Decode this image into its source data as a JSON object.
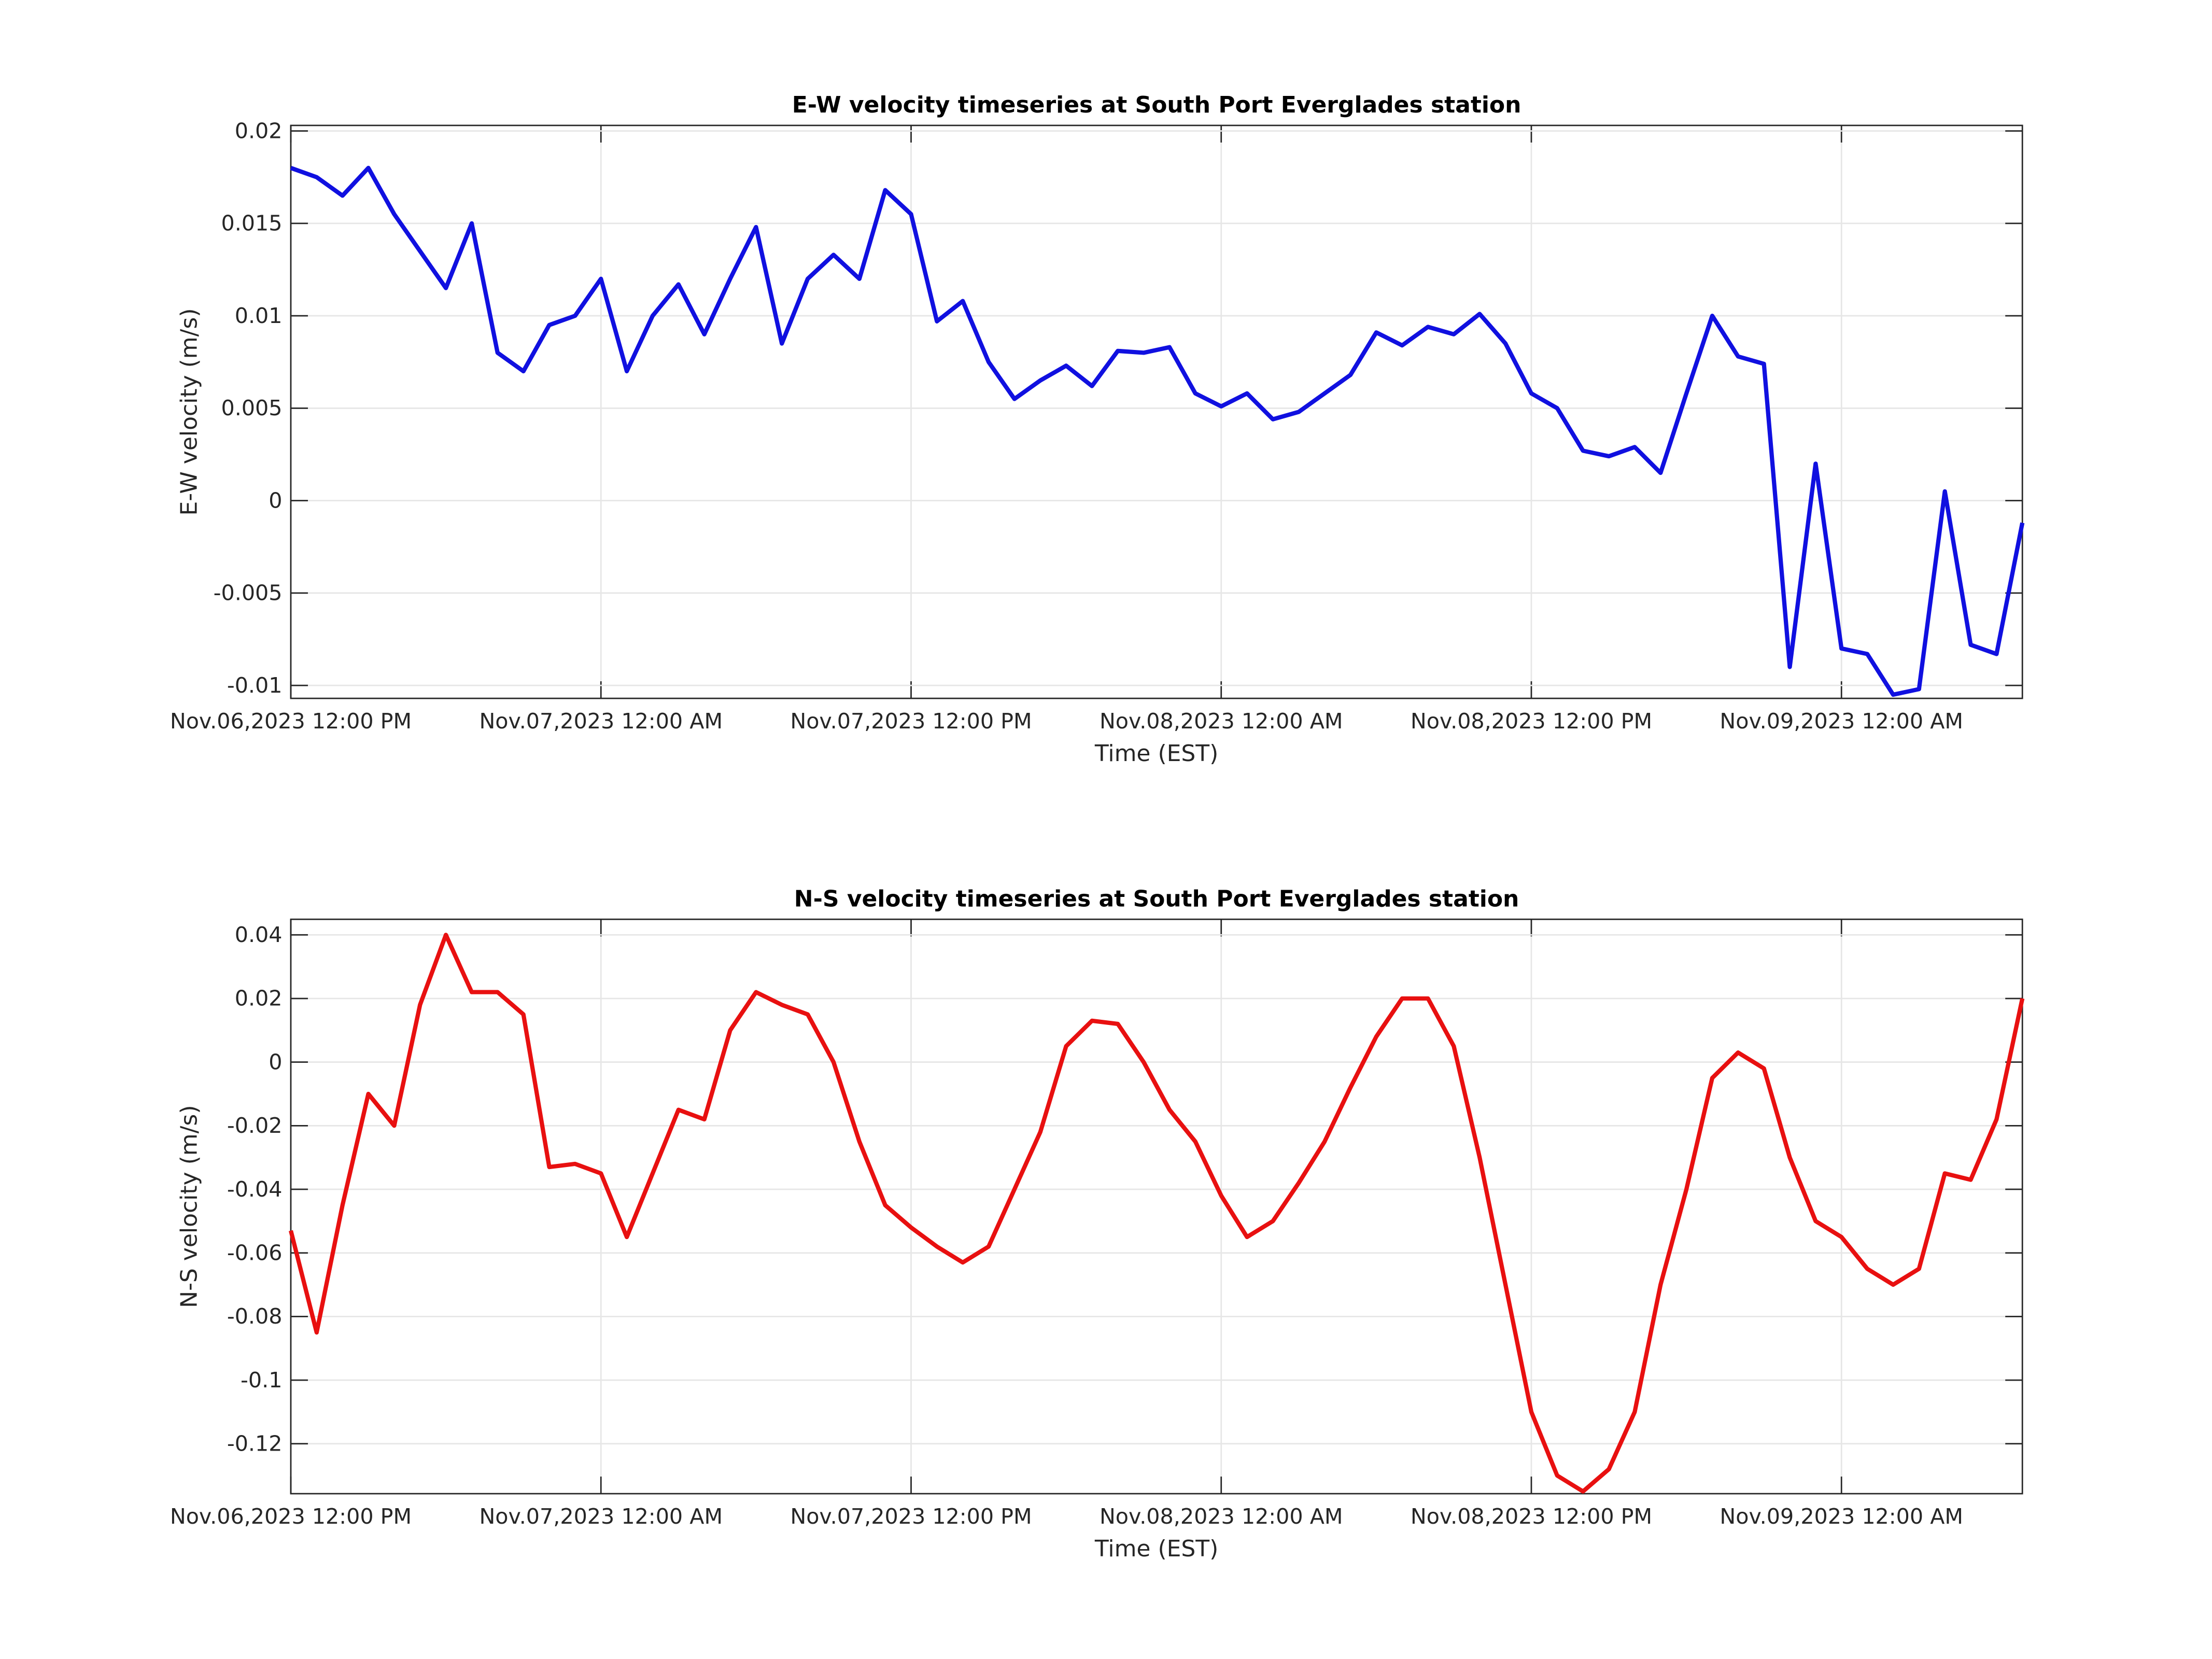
{
  "chart_data": [
    {
      "type": "line",
      "title": "E-W velocity timeseries at South Port Everglades station",
      "xlabel": "Time (EST)",
      "ylabel": "E-W velocity (m/s)",
      "x": [
        "2023-11-06T12:00",
        "2023-11-06T13:00",
        "2023-11-06T14:00",
        "2023-11-06T15:00",
        "2023-11-06T16:00",
        "2023-11-06T17:00",
        "2023-11-06T18:00",
        "2023-11-06T19:00",
        "2023-11-06T20:00",
        "2023-11-06T21:00",
        "2023-11-06T22:00",
        "2023-11-06T23:00",
        "2023-11-07T00:00",
        "2023-11-07T01:00",
        "2023-11-07T02:00",
        "2023-11-07T03:00",
        "2023-11-07T04:00",
        "2023-11-07T05:00",
        "2023-11-07T06:00",
        "2023-11-07T07:00",
        "2023-11-07T08:00",
        "2023-11-07T09:00",
        "2023-11-07T10:00",
        "2023-11-07T11:00",
        "2023-11-07T12:00",
        "2023-11-07T13:00",
        "2023-11-07T14:00",
        "2023-11-07T15:00",
        "2023-11-07T16:00",
        "2023-11-07T17:00",
        "2023-11-07T18:00",
        "2023-11-07T19:00",
        "2023-11-07T20:00",
        "2023-11-07T21:00",
        "2023-11-07T22:00",
        "2023-11-07T23:00",
        "2023-11-08T00:00",
        "2023-11-08T01:00",
        "2023-11-08T02:00",
        "2023-11-08T03:00",
        "2023-11-08T04:00",
        "2023-11-08T05:00",
        "2023-11-08T06:00",
        "2023-11-08T07:00",
        "2023-11-08T08:00",
        "2023-11-08T09:00",
        "2023-11-08T10:00",
        "2023-11-08T11:00",
        "2023-11-08T12:00",
        "2023-11-08T13:00",
        "2023-11-08T14:00",
        "2023-11-08T15:00",
        "2023-11-08T16:00",
        "2023-11-08T17:00",
        "2023-11-08T18:00",
        "2023-11-08T19:00",
        "2023-11-08T20:00",
        "2023-11-08T21:00",
        "2023-11-08T22:00",
        "2023-11-08T23:00",
        "2023-11-09T00:00",
        "2023-11-09T01:00",
        "2023-11-09T02:00",
        "2023-11-09T03:00",
        "2023-11-09T04:00",
        "2023-11-09T05:00",
        "2023-11-09T06:00",
        "2023-11-09T07:00"
      ],
      "series": [
        {
          "color": "#1010e0",
          "values": [
            0.018,
            0.0175,
            0.0165,
            0.018,
            0.0155,
            0.0135,
            0.0115,
            0.015,
            0.008,
            0.007,
            0.0095,
            0.01,
            0.012,
            0.007,
            0.01,
            0.0117,
            0.009,
            0.012,
            0.0148,
            0.0085,
            0.012,
            0.0133,
            0.012,
            0.0168,
            0.0155,
            0.0097,
            0.0108,
            0.0075,
            0.0055,
            0.0065,
            0.0073,
            0.0062,
            0.0081,
            0.008,
            0.0083,
            0.0058,
            0.0051,
            0.0058,
            0.0044,
            0.0048,
            0.0058,
            0.0068,
            0.0091,
            0.0084,
            0.0094,
            0.009,
            0.0101,
            0.0085,
            0.0058,
            0.005,
            0.0027,
            0.0024,
            0.0029,
            0.0015,
            0.0058,
            0.01,
            0.0078,
            0.0074,
            -0.009,
            0.002,
            -0.008,
            -0.0083,
            -0.0105,
            -0.0102,
            0.0005,
            -0.0078,
            -0.0083,
            -0.0012
          ]
        }
      ],
      "xlim": [
        "2023-11-06T12:00",
        "2023-11-09T07:00"
      ],
      "xticks": [
        {
          "value": "2023-11-06T12:00",
          "label": "Nov.06,2023 12:00 PM"
        },
        {
          "value": "2023-11-07T00:00",
          "label": "Nov.07,2023 12:00 AM"
        },
        {
          "value": "2023-11-07T12:00",
          "label": "Nov.07,2023 12:00 PM"
        },
        {
          "value": "2023-11-08T00:00",
          "label": "Nov.08,2023 12:00 AM"
        },
        {
          "value": "2023-11-08T12:00",
          "label": "Nov.08,2023 12:00 PM"
        },
        {
          "value": "2023-11-09T00:00",
          "label": "Nov.09,2023 12:00 AM"
        }
      ],
      "ylim": [
        -0.0107,
        0.0203
      ],
      "yticks": [
        0.02,
        0.015,
        0.01,
        0.005,
        0,
        -0.005,
        -0.01
      ],
      "grid": true
    },
    {
      "type": "line",
      "title": "N-S velocity timeseries at South Port Everglades station",
      "xlabel": "Time (EST)",
      "ylabel": "N-S velocity (m/s)",
      "x": [
        "2023-11-06T12:00",
        "2023-11-06T13:00",
        "2023-11-06T14:00",
        "2023-11-06T15:00",
        "2023-11-06T16:00",
        "2023-11-06T17:00",
        "2023-11-06T18:00",
        "2023-11-06T19:00",
        "2023-11-06T20:00",
        "2023-11-06T21:00",
        "2023-11-06T22:00",
        "2023-11-06T23:00",
        "2023-11-07T00:00",
        "2023-11-07T01:00",
        "2023-11-07T02:00",
        "2023-11-07T03:00",
        "2023-11-07T04:00",
        "2023-11-07T05:00",
        "2023-11-07T06:00",
        "2023-11-07T07:00",
        "2023-11-07T08:00",
        "2023-11-07T09:00",
        "2023-11-07T10:00",
        "2023-11-07T11:00",
        "2023-11-07T12:00",
        "2023-11-07T13:00",
        "2023-11-07T14:00",
        "2023-11-07T15:00",
        "2023-11-07T16:00",
        "2023-11-07T17:00",
        "2023-11-07T18:00",
        "2023-11-07T19:00",
        "2023-11-07T20:00",
        "2023-11-07T21:00",
        "2023-11-07T22:00",
        "2023-11-07T23:00",
        "2023-11-08T00:00",
        "2023-11-08T01:00",
        "2023-11-08T02:00",
        "2023-11-08T03:00",
        "2023-11-08T04:00",
        "2023-11-08T05:00",
        "2023-11-08T06:00",
        "2023-11-08T07:00",
        "2023-11-08T08:00",
        "2023-11-08T09:00",
        "2023-11-08T10:00",
        "2023-11-08T11:00",
        "2023-11-08T12:00",
        "2023-11-08T13:00",
        "2023-11-08T14:00",
        "2023-11-08T15:00",
        "2023-11-08T16:00",
        "2023-11-08T17:00",
        "2023-11-08T18:00",
        "2023-11-08T19:00",
        "2023-11-08T20:00",
        "2023-11-08T21:00",
        "2023-11-08T22:00",
        "2023-11-08T23:00",
        "2023-11-09T00:00",
        "2023-11-09T01:00",
        "2023-11-09T02:00",
        "2023-11-09T03:00",
        "2023-11-09T04:00",
        "2023-11-09T05:00",
        "2023-11-09T06:00",
        "2023-11-09T07:00"
      ],
      "series": [
        {
          "color": "#e81010",
          "values": [
            -0.053,
            -0.085,
            -0.045,
            -0.01,
            -0.02,
            0.018,
            0.04,
            0.022,
            0.022,
            0.015,
            -0.033,
            -0.032,
            -0.035,
            -0.055,
            -0.035,
            -0.015,
            -0.018,
            0.01,
            0.022,
            0.018,
            0.015,
            0,
            -0.025,
            -0.045,
            -0.052,
            -0.058,
            -0.063,
            -0.058,
            -0.04,
            -0.022,
            0.005,
            0.013,
            0.012,
            0,
            -0.015,
            -0.025,
            -0.042,
            -0.055,
            -0.05,
            -0.038,
            -0.025,
            -0.008,
            0.008,
            0.02,
            0.02,
            0.005,
            -0.03,
            -0.07,
            -0.11,
            -0.13,
            -0.135,
            -0.128,
            -0.11,
            -0.07,
            -0.04,
            -0.005,
            0.003,
            -0.002,
            -0.03,
            -0.05,
            -0.055,
            -0.065,
            -0.07,
            -0.065,
            -0.035,
            -0.037,
            -0.018,
            0.02
          ]
        }
      ],
      "xlim": [
        "2023-11-06T12:00",
        "2023-11-09T07:00"
      ],
      "xticks": [
        {
          "value": "2023-11-06T12:00",
          "label": "Nov.06,2023 12:00 PM"
        },
        {
          "value": "2023-11-07T00:00",
          "label": "Nov.07,2023 12:00 AM"
        },
        {
          "value": "2023-11-07T12:00",
          "label": "Nov.07,2023 12:00 PM"
        },
        {
          "value": "2023-11-08T00:00",
          "label": "Nov.08,2023 12:00 AM"
        },
        {
          "value": "2023-11-08T12:00",
          "label": "Nov.08,2023 12:00 PM"
        },
        {
          "value": "2023-11-09T00:00",
          "label": "Nov.09,2023 12:00 AM"
        }
      ],
      "ylim": [
        -0.1357,
        0.0449
      ],
      "yticks": [
        0.04,
        0.02,
        0,
        -0.02,
        -0.04,
        -0.06,
        -0.08,
        -0.1,
        -0.12
      ],
      "grid": true
    }
  ]
}
